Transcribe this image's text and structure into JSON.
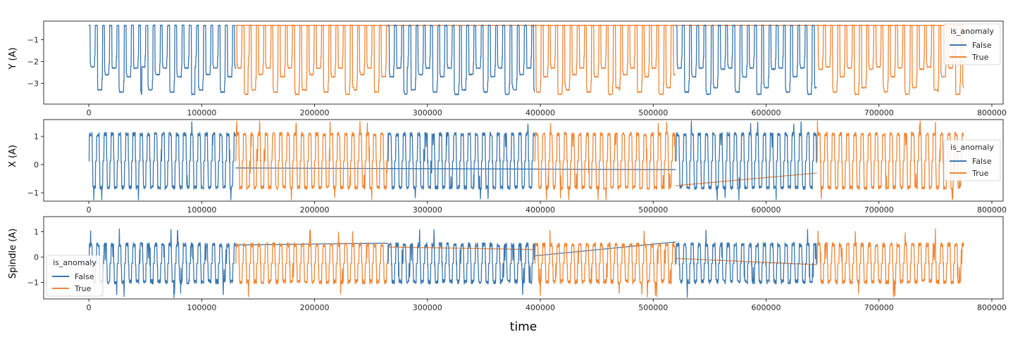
{
  "chart_data": {
    "type": "line",
    "xlabel": "time",
    "xlim": [
      -40000,
      810000
    ],
    "x_ticks": [
      0,
      100000,
      200000,
      300000,
      400000,
      500000,
      600000,
      700000,
      800000
    ],
    "x_tick_labels": [
      "0",
      "100000",
      "200000",
      "300000",
      "400000",
      "500000",
      "600000",
      "700000",
      "800000"
    ],
    "series_names": [
      "False",
      "True"
    ],
    "colors": {
      "False": "#3a76af",
      "True": "#ef8636"
    },
    "legend_title": "is_anomaly",
    "segments": [
      {
        "label": "False",
        "start": 0,
        "end": 130000
      },
      {
        "label": "True",
        "start": 130000,
        "end": 265000
      },
      {
        "label": "False",
        "start": 265000,
        "end": 395000
      },
      {
        "label": "True",
        "start": 395000,
        "end": 520000
      },
      {
        "label": "False",
        "start": 520000,
        "end": 645000
      },
      {
        "label": "True",
        "start": 645000,
        "end": 775000
      }
    ],
    "panels": [
      {
        "ylabel": "Y (A)",
        "ylim": [
          -3.95,
          -0.15
        ],
        "y_ticks": [
          -1,
          -2,
          -3
        ],
        "y_tick_labels": [
          "−1",
          "−2",
          "−3"
        ],
        "legend_position": "upper-right",
        "baseline": -0.35,
        "low_levels": [
          -2.25,
          -2.3,
          -2.3,
          -2.35,
          -2.6,
          -2.7,
          -3.2,
          -3.3,
          -3.4,
          -3.5
        ],
        "connectors": [
          [
            130000,
            -0.35,
            775000,
            -0.35
          ]
        ]
      },
      {
        "ylabel": "X (A)",
        "ylim": [
          -1.3,
          1.6
        ],
        "y_ticks": [
          1,
          0,
          -1
        ],
        "y_tick_labels": [
          "1",
          "0",
          "−1"
        ],
        "legend_position": "center-right",
        "high": 1.05,
        "low": -0.8,
        "connectors": [
          [
            130000,
            -0.12,
            520000,
            -0.18
          ],
          [
            520000,
            -0.75,
            645000,
            -0.3
          ]
        ]
      },
      {
        "ylabel": "Spindle (A)",
        "ylim": [
          -1.65,
          1.6
        ],
        "y_ticks": [
          1,
          0,
          -1
        ],
        "y_tick_labels": [
          "1",
          "0",
          "−1"
        ],
        "legend_position": "lower-left",
        "high": 0.45,
        "low": -0.95,
        "connectors": [
          [
            130000,
            0.48,
            265000,
            0.55
          ],
          [
            265000,
            0.4,
            395000,
            0.3
          ],
          [
            395000,
            0.05,
            520000,
            0.6
          ],
          [
            520000,
            -0.05,
            645000,
            -0.3
          ]
        ]
      }
    ]
  }
}
